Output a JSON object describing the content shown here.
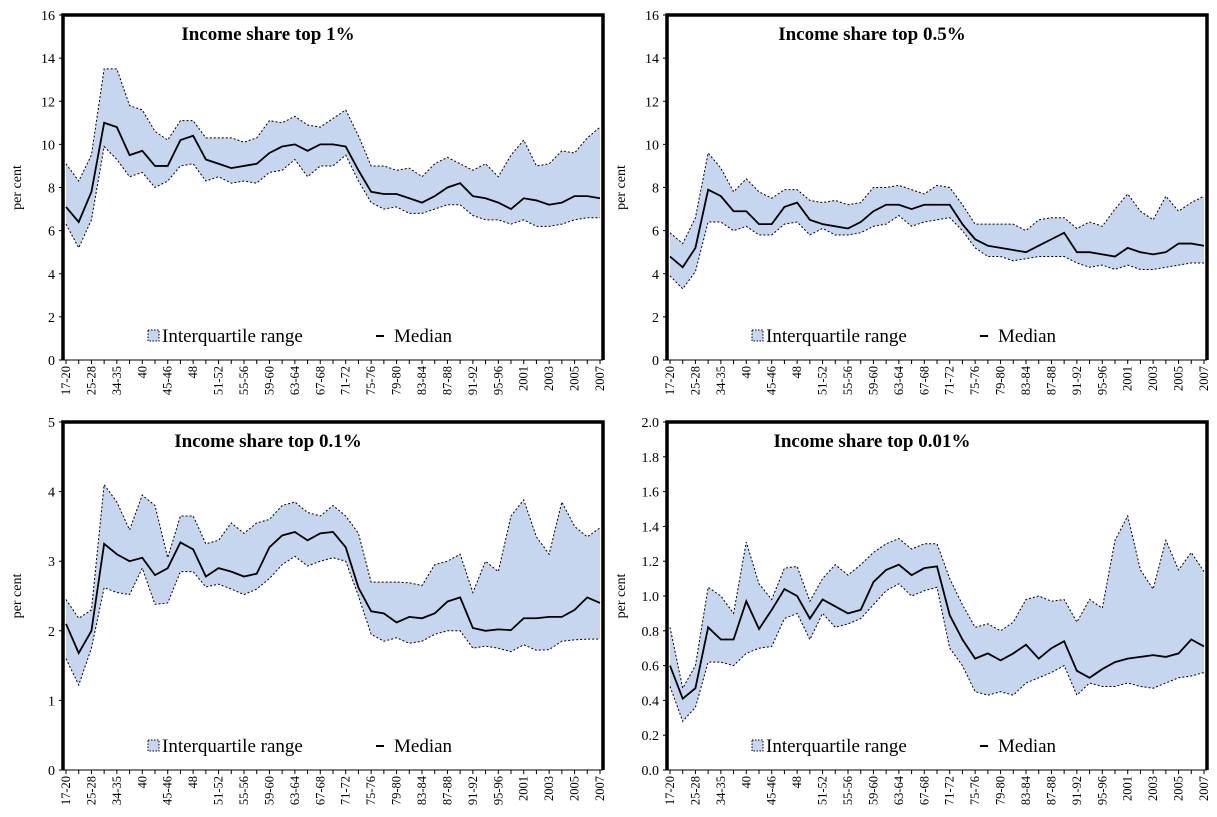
{
  "chart_data": [
    {
      "type": "range-line",
      "title": "Income share top 1%",
      "y_label": "per cent",
      "categories": [
        "17-20",
        null,
        "25-28",
        null,
        "34-35",
        null,
        "40",
        null,
        "45-46",
        null,
        "48",
        null,
        "51-52",
        null,
        "55-56",
        null,
        "59-60",
        null,
        "63-64",
        null,
        "67-68",
        null,
        "71-72",
        null,
        "75-76",
        null,
        "79-80",
        null,
        "83-84",
        null,
        "87-88",
        null,
        "91-92",
        null,
        "95-96",
        null,
        "2001",
        null,
        "2003",
        null,
        "2005",
        null,
        "2007"
      ],
      "ylim": [
        0,
        16
      ],
      "yticks": [
        0,
        2,
        4,
        6,
        8,
        10,
        12,
        14,
        16
      ],
      "series": [
        {
          "name": "Interquartile range",
          "color": "#c6d6ee",
          "high": [
            9.1,
            8.3,
            9.5,
            13.5,
            13.5,
            11.8,
            11.6,
            10.6,
            10.2,
            11.1,
            11.1,
            10.3,
            10.3,
            10.3,
            10.1,
            10.3,
            11.1,
            11.0,
            11.3,
            10.9,
            10.8,
            11.2,
            11.6,
            10.4,
            9.0,
            9.0,
            8.8,
            8.9,
            8.5,
            9.1,
            9.4,
            9.1,
            8.8,
            9.1,
            8.5,
            9.5,
            10.2,
            9.0,
            9.1,
            9.7,
            9.6,
            10.3,
            10.8
          ],
          "low": [
            6.3,
            5.2,
            6.5,
            9.9,
            9.3,
            8.5,
            8.7,
            8.0,
            8.3,
            9.0,
            9.1,
            8.3,
            8.5,
            8.2,
            8.3,
            8.2,
            8.7,
            8.8,
            9.3,
            8.5,
            9.0,
            9.0,
            9.5,
            8.3,
            7.3,
            7.0,
            7.1,
            6.8,
            6.8,
            7.0,
            7.2,
            7.2,
            6.7,
            6.5,
            6.5,
            6.3,
            6.5,
            6.2,
            6.2,
            6.3,
            6.5,
            6.6,
            6.6
          ]
        },
        {
          "name": "Median",
          "color": "#000000",
          "values": [
            7.1,
            6.4,
            7.8,
            11.0,
            10.8,
            9.5,
            9.7,
            9.0,
            9.0,
            10.2,
            10.4,
            9.3,
            9.1,
            8.9,
            9.0,
            9.1,
            9.6,
            9.9,
            10.0,
            9.7,
            10.0,
            10.0,
            9.9,
            8.8,
            7.8,
            7.7,
            7.7,
            7.5,
            7.3,
            7.6,
            8.0,
            8.2,
            7.6,
            7.5,
            7.3,
            7.0,
            7.5,
            7.4,
            7.2,
            7.3,
            7.6,
            7.6,
            7.5
          ]
        }
      ]
    },
    {
      "type": "range-line",
      "title": "Income share top 0.5%",
      "y_label": "per cent",
      "categories": [
        "17-20",
        null,
        "25-28",
        null,
        "34-35",
        null,
        "40",
        null,
        "45-46",
        null,
        "48",
        null,
        "51-52",
        null,
        "55-56",
        null,
        "59-60",
        null,
        "63-64",
        null,
        "67-68",
        null,
        "71-72",
        null,
        "75-76",
        null,
        "79-80",
        null,
        "83-84",
        null,
        "87-88",
        null,
        "91-92",
        null,
        "95-96",
        null,
        "2001",
        null,
        "2003",
        null,
        "2005",
        null,
        "2007"
      ],
      "ylim": [
        0,
        16
      ],
      "yticks": [
        0,
        2,
        4,
        6,
        8,
        10,
        12,
        14,
        16
      ],
      "series": [
        {
          "name": "Interquartile range",
          "color": "#c6d6ee",
          "high": [
            5.9,
            5.4,
            6.6,
            9.6,
            8.9,
            7.8,
            8.4,
            7.8,
            7.5,
            7.9,
            7.9,
            7.4,
            7.3,
            7.4,
            7.2,
            7.3,
            8.0,
            8.0,
            8.1,
            7.9,
            7.7,
            8.1,
            8.0,
            7.2,
            6.3,
            6.3,
            6.3,
            6.3,
            6.0,
            6.5,
            6.6,
            6.6,
            6.1,
            6.4,
            6.2,
            7.0,
            7.7,
            6.9,
            6.5,
            7.6,
            6.9,
            7.3,
            7.6
          ],
          "low": [
            3.9,
            3.3,
            4.1,
            6.4,
            6.4,
            6.0,
            6.2,
            5.8,
            5.8,
            6.3,
            6.4,
            5.8,
            6.1,
            5.8,
            5.8,
            5.9,
            6.2,
            6.3,
            6.7,
            6.2,
            6.4,
            6.5,
            6.6,
            6.0,
            5.2,
            4.8,
            4.8,
            4.6,
            4.7,
            4.8,
            4.8,
            4.8,
            4.5,
            4.3,
            4.4,
            4.2,
            4.4,
            4.2,
            4.2,
            4.3,
            4.4,
            4.5,
            4.5
          ]
        },
        {
          "name": "Median",
          "color": "#000000",
          "values": [
            4.8,
            4.3,
            5.2,
            7.9,
            7.6,
            6.9,
            6.9,
            6.3,
            6.3,
            7.1,
            7.3,
            6.5,
            6.3,
            6.2,
            6.1,
            6.4,
            6.9,
            7.2,
            7.2,
            7.0,
            7.2,
            7.2,
            7.2,
            6.3,
            5.6,
            5.3,
            5.2,
            5.1,
            5.0,
            5.3,
            5.6,
            5.9,
            5.0,
            5.0,
            4.9,
            4.8,
            5.2,
            5.0,
            4.9,
            5.0,
            5.4,
            5.4,
            5.3
          ]
        }
      ]
    },
    {
      "type": "range-line",
      "title": "Income share top 0.1%",
      "y_label": "per cent",
      "categories": [
        "17-20",
        null,
        "25-28",
        null,
        "34-35",
        null,
        "40",
        null,
        "45-46",
        null,
        "48",
        null,
        "51-52",
        null,
        "55-56",
        null,
        "59-60",
        null,
        "63-64",
        null,
        "67-68",
        null,
        "71-72",
        null,
        "75-76",
        null,
        "79-80",
        null,
        "83-84",
        null,
        "87-88",
        null,
        "91-92",
        null,
        "95-96",
        null,
        "2001",
        null,
        "2003",
        null,
        "2005",
        null,
        "2007"
      ],
      "ylim": [
        0,
        5
      ],
      "yticks": [
        0,
        1,
        2,
        3,
        4,
        5
      ],
      "series": [
        {
          "name": "Interquartile range",
          "color": "#c6d6ee",
          "high": [
            2.45,
            2.18,
            2.3,
            4.1,
            3.85,
            3.45,
            3.95,
            3.8,
            3.05,
            3.65,
            3.65,
            3.25,
            3.3,
            3.55,
            3.4,
            3.55,
            3.6,
            3.8,
            3.85,
            3.7,
            3.65,
            3.8,
            3.65,
            3.4,
            2.7,
            2.7,
            2.7,
            2.69,
            2.65,
            2.95,
            3.0,
            3.1,
            2.55,
            3.0,
            2.85,
            3.65,
            3.88,
            3.35,
            3.1,
            3.85,
            3.5,
            3.35,
            3.48
          ],
          "low": [
            1.6,
            1.22,
            1.75,
            2.62,
            2.55,
            2.52,
            2.9,
            2.38,
            2.4,
            2.85,
            2.85,
            2.63,
            2.67,
            2.6,
            2.52,
            2.6,
            2.75,
            2.95,
            3.07,
            2.93,
            3.0,
            3.05,
            3.0,
            2.5,
            1.95,
            1.85,
            1.9,
            1.82,
            1.85,
            1.95,
            2.0,
            2.0,
            1.75,
            1.78,
            1.75,
            1.7,
            1.8,
            1.72,
            1.73,
            1.85,
            1.87,
            1.88,
            1.88
          ]
        },
        {
          "name": "Median",
          "color": "#000000",
          "values": [
            2.1,
            1.68,
            2.0,
            3.25,
            3.1,
            3.0,
            3.05,
            2.8,
            2.9,
            3.27,
            3.17,
            2.78,
            2.9,
            2.85,
            2.78,
            2.82,
            3.2,
            3.37,
            3.42,
            3.3,
            3.4,
            3.42,
            3.2,
            2.62,
            2.28,
            2.25,
            2.12,
            2.2,
            2.18,
            2.25,
            2.42,
            2.48,
            2.04,
            2.0,
            2.02,
            2.01,
            2.18,
            2.18,
            2.2,
            2.2,
            2.3,
            2.48,
            2.4
          ]
        }
      ]
    },
    {
      "type": "range-line",
      "title": "Income share top 0.01%",
      "y_label": "per cent",
      "categories": [
        "17-20",
        null,
        "25-28",
        null,
        "34-35",
        null,
        "40",
        null,
        "45-46",
        null,
        "48",
        null,
        "51-52",
        null,
        "55-56",
        null,
        "59-60",
        null,
        "63-64",
        null,
        "67-68",
        null,
        "71-72",
        null,
        "75-76",
        null,
        "79-80",
        null,
        "83-84",
        null,
        "87-88",
        null,
        "91-92",
        null,
        "95-96",
        null,
        "2001",
        null,
        "2003",
        null,
        "2005",
        null,
        "2007"
      ],
      "ylim": [
        0,
        2
      ],
      "yticks": [
        {
          "value": 0,
          "label": "0.0"
        },
        0.2,
        0.4,
        0.6,
        0.8,
        {
          "value": 1,
          "label": "1.0"
        },
        1.2,
        1.4,
        1.6,
        1.8,
        {
          "value": 2,
          "label": "2.0"
        }
      ],
      "series": [
        {
          "name": "Interquartile range",
          "color": "#c6d6ee",
          "high": [
            0.82,
            0.47,
            0.6,
            1.05,
            1.0,
            0.9,
            1.31,
            1.07,
            0.98,
            1.16,
            1.17,
            0.97,
            1.1,
            1.18,
            1.12,
            1.18,
            1.25,
            1.3,
            1.33,
            1.27,
            1.3,
            1.3,
            1.1,
            0.95,
            0.82,
            0.84,
            0.8,
            0.85,
            0.98,
            1.0,
            0.97,
            0.98,
            0.85,
            0.98,
            0.93,
            1.32,
            1.46,
            1.15,
            1.04,
            1.32,
            1.15,
            1.25,
            1.14
          ],
          "low": [
            0.48,
            0.28,
            0.36,
            0.62,
            0.62,
            0.6,
            0.67,
            0.7,
            0.71,
            0.87,
            0.9,
            0.75,
            0.9,
            0.82,
            0.84,
            0.87,
            0.95,
            1.03,
            1.07,
            1.0,
            1.03,
            1.05,
            0.7,
            0.6,
            0.45,
            0.43,
            0.45,
            0.43,
            0.5,
            0.53,
            0.56,
            0.6,
            0.43,
            0.5,
            0.48,
            0.48,
            0.5,
            0.48,
            0.47,
            0.5,
            0.53,
            0.54,
            0.56
          ]
        },
        {
          "name": "Median",
          "color": "#000000",
          "values": [
            0.6,
            0.41,
            0.47,
            0.82,
            0.75,
            0.75,
            0.97,
            0.81,
            0.92,
            1.04,
            1.0,
            0.87,
            0.98,
            0.94,
            0.9,
            0.92,
            1.08,
            1.15,
            1.18,
            1.12,
            1.16,
            1.17,
            0.89,
            0.75,
            0.64,
            0.67,
            0.63,
            0.67,
            0.72,
            0.64,
            0.7,
            0.74,
            0.57,
            0.53,
            0.58,
            0.62,
            0.64,
            0.65,
            0.66,
            0.65,
            0.67,
            0.75,
            0.71
          ]
        }
      ]
    }
  ]
}
